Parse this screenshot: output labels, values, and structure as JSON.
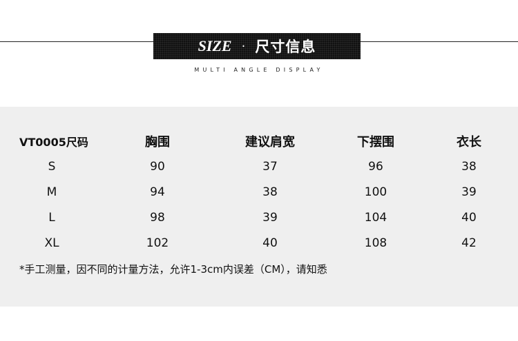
{
  "header": {
    "title_en": "SIZE",
    "separator": "·",
    "title_cn": "尺寸信息",
    "subtitle": "MULTI ANGLE DISPLAY"
  },
  "table": {
    "columns": [
      "VT0005尺码",
      "胸围",
      "建议肩宽",
      "下摆围",
      "衣长"
    ],
    "rows": [
      [
        "S",
        "90",
        "37",
        "96",
        "38"
      ],
      [
        "M",
        "94",
        "38",
        "100",
        "39"
      ],
      [
        "L",
        "98",
        "39",
        "104",
        "40"
      ],
      [
        "XL",
        "102",
        "40",
        "108",
        "42"
      ]
    ]
  },
  "note": "*手工测量，因不同的计量方法，允许1-3cm内误差（CM），请知悉"
}
